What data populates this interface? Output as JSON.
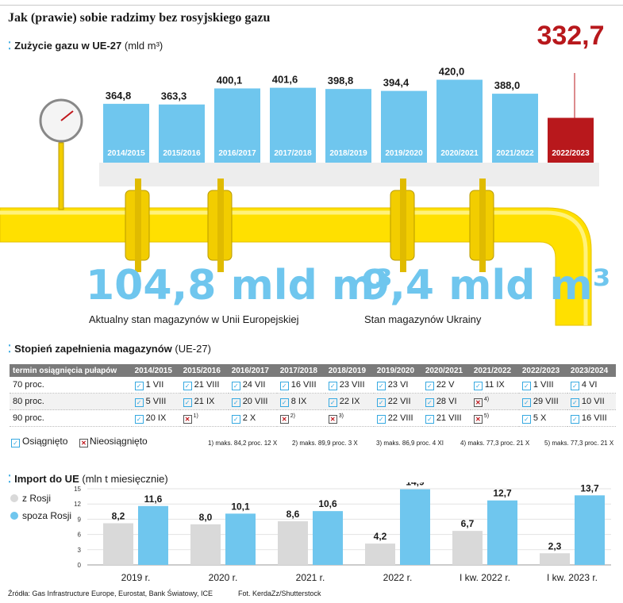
{
  "title": "Jak (prawie) sobie radzimy bez rosyjskiego gazu",
  "section_usage": {
    "label": "Zużycie gazu w UE-27",
    "unit": "(mld m³)"
  },
  "chart_data": [
    {
      "type": "bar",
      "title": "Zużycie gazu w UE-27",
      "ylabel": "mld m³",
      "categories": [
        "2014/2015",
        "2015/2016",
        "2016/2017",
        "2017/2018",
        "2018/2019",
        "2019/2020",
        "2020/2021",
        "2021/2022",
        "2022/2023"
      ],
      "values": [
        364.8,
        363.3,
        400.1,
        401.6,
        398.8,
        394.4,
        420.0,
        388.0,
        332.7
      ],
      "labels": [
        "364,8",
        "363,3",
        "400,1",
        "401,6",
        "398,8",
        "394,4",
        "420,0",
        "388,0",
        "332,7"
      ],
      "colors": {
        "normal": "#6fc6ee",
        "highlight": "#b8181c"
      },
      "highlight_index": 8
    },
    {
      "type": "bar",
      "title": "Import do UE",
      "ylabel": "mln t miesięcznie",
      "categories": [
        "2019 r.",
        "2020 r.",
        "2021 r.",
        "2022 r.",
        "I kw. 2022 r.",
        "I kw. 2023 r."
      ],
      "series": [
        {
          "name": "z Rosji",
          "values": [
            8.2,
            8.0,
            8.6,
            4.2,
            6.7,
            2.3
          ],
          "labels": [
            "8,2",
            "8,0",
            "8,6",
            "4,2",
            "6,7",
            "2,3"
          ],
          "color": "#d9d9d9"
        },
        {
          "name": "spoza Rosji",
          "values": [
            11.6,
            10.1,
            10.6,
            14.9,
            12.7,
            13.7
          ],
          "labels": [
            "11,6",
            "10,1",
            "10,6",
            "14,9",
            "12,7",
            "13,7"
          ],
          "color": "#6fc6ee"
        }
      ],
      "yticks": [
        "0",
        "3",
        "6",
        "9",
        "12",
        "15"
      ],
      "ylim": [
        0,
        15
      ]
    }
  ],
  "storage": {
    "eu_value": "104,8 mld m³",
    "eu_caption": "Aktualny stan magazynów w Unii Europejskiej",
    "ua_value": "9,4 mld m³",
    "ua_caption": "Stan magazynów Ukrainy"
  },
  "section_fill": {
    "label": "Stopień zapełnienia magazynów",
    "unit": "(UE-27)"
  },
  "fill_table": {
    "header": [
      "termin osiągnięcia pułapów",
      "2014/2015",
      "2015/2016",
      "2016/2017",
      "2017/2018",
      "2018/2019",
      "2019/2020",
      "2020/2021",
      "2021/2022",
      "2022/2023",
      "2023/2024"
    ],
    "rows": [
      {
        "label": "70 proc.",
        "cells": [
          {
            "s": "ok",
            "t": "1 VII"
          },
          {
            "s": "ok",
            "t": "21 VIII"
          },
          {
            "s": "ok",
            "t": "24 VII"
          },
          {
            "s": "ok",
            "t": "16 VIII"
          },
          {
            "s": "ok",
            "t": "23 VIII"
          },
          {
            "s": "ok",
            "t": "23 VI"
          },
          {
            "s": "ok",
            "t": "22 V"
          },
          {
            "s": "ok",
            "t": "11 IX"
          },
          {
            "s": "ok",
            "t": "1 VIII"
          },
          {
            "s": "ok",
            "t": "4 VI"
          }
        ]
      },
      {
        "label": "80 proc.",
        "cells": [
          {
            "s": "ok",
            "t": "5 VIII"
          },
          {
            "s": "ok",
            "t": "21 IX"
          },
          {
            "s": "ok",
            "t": "20 VIII"
          },
          {
            "s": "ok",
            "t": "8 IX"
          },
          {
            "s": "ok",
            "t": "22 IX"
          },
          {
            "s": "ok",
            "t": "22 VII"
          },
          {
            "s": "ok",
            "t": "28 VI"
          },
          {
            "s": "no",
            "t": "",
            "fn": "4)"
          },
          {
            "s": "ok",
            "t": "29 VIII"
          },
          {
            "s": "ok",
            "t": "10 VII"
          }
        ]
      },
      {
        "label": "90 proc.",
        "cells": [
          {
            "s": "ok",
            "t": "20 IX"
          },
          {
            "s": "no",
            "t": "",
            "fn": "1)"
          },
          {
            "s": "ok",
            "t": "2 X"
          },
          {
            "s": "no",
            "t": "",
            "fn": "2)"
          },
          {
            "s": "no",
            "t": "",
            "fn": "3)"
          },
          {
            "s": "ok",
            "t": "22 VIII"
          },
          {
            "s": "ok",
            "t": "21 VIII"
          },
          {
            "s": "no",
            "t": "",
            "fn": "5)"
          },
          {
            "s": "ok",
            "t": "5 X"
          },
          {
            "s": "ok",
            "t": "16 VIII"
          }
        ]
      }
    ]
  },
  "legend": {
    "ok": "Osiągnięto",
    "no": "Nieosiągnięto"
  },
  "notes": [
    "1) maks. 84,2 proc. 12 X",
    "2) maks. 89,9 proc. 3 X",
    "3) maks. 86,9 proc. 4 XI",
    "4) maks. 77,3 proc. 21 X",
    "5) maks. 77,3 proc. 21 X"
  ],
  "section_import": {
    "label": "Import do UE",
    "unit": "(mln t miesięcznie)"
  },
  "source": "Źródła: Gas Infrastructure Europe, Eurostat, Bank Światowy, ICE",
  "photo": "Fot. KerdaZz/Shutterstock"
}
